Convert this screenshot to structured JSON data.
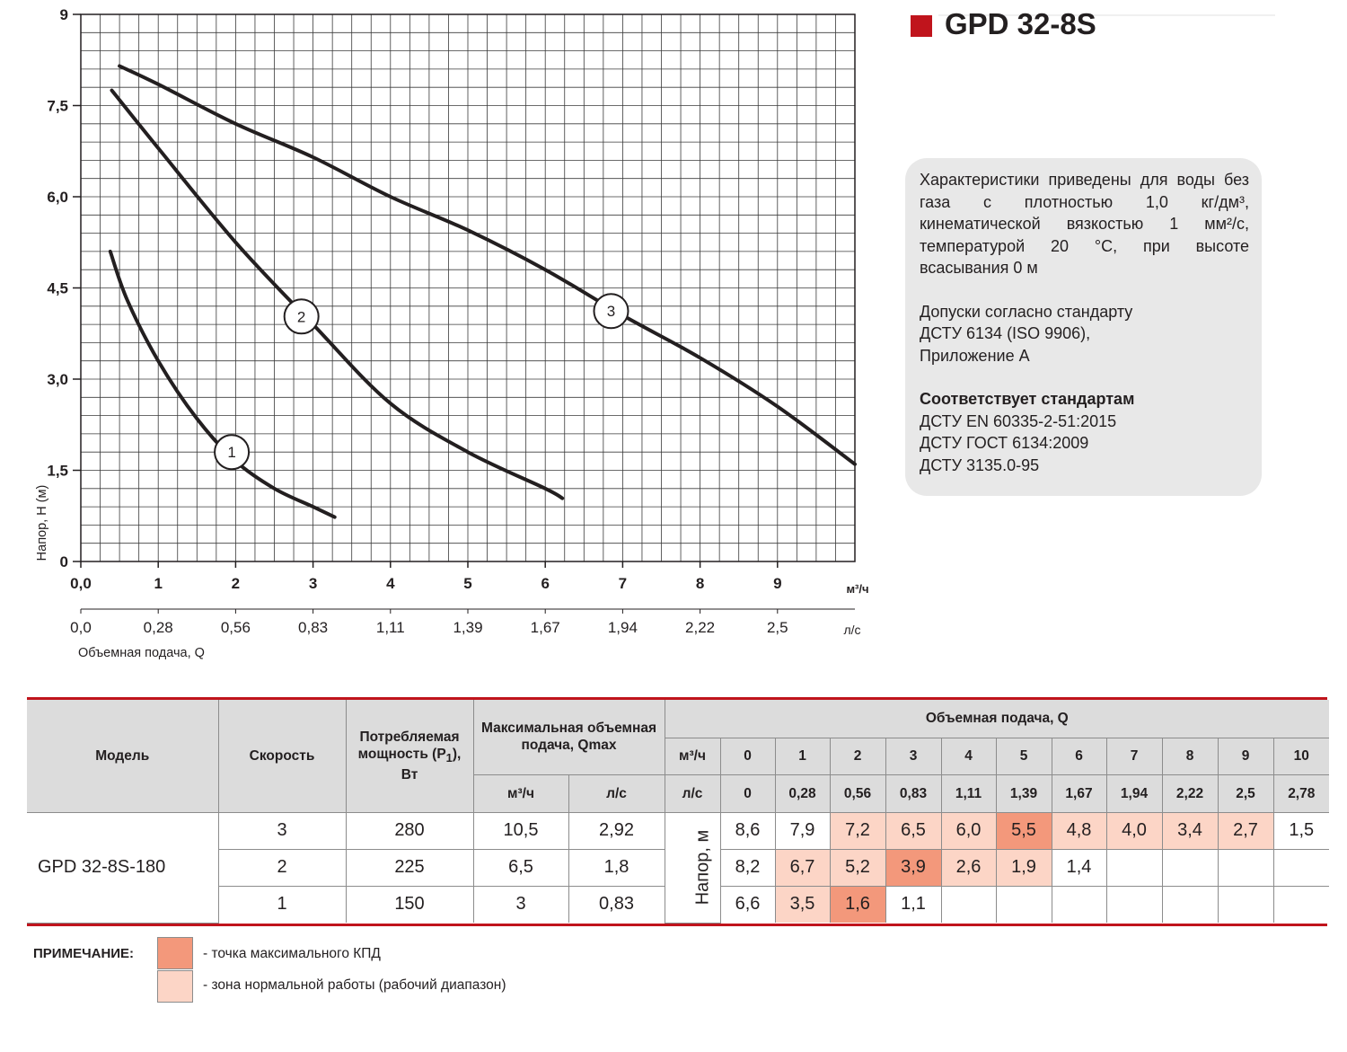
{
  "title": "GPD 32-8S",
  "colors": {
    "accent": "#c0141c",
    "max_efficiency": "#f3987b",
    "normal_zone": "#fcd5c6",
    "info_box": "#e8e8e8",
    "header_bg": "#dcdcdc"
  },
  "chart_data": {
    "type": "line",
    "xlabel": "Объемная подача, Q",
    "ylabel": "Напор, H (м)",
    "x_unit": "м³/ч",
    "x2_unit": "л/с",
    "xlim": [
      0,
      10
    ],
    "ylim": [
      0,
      9
    ],
    "x_ticks": [
      "0,0",
      "1",
      "2",
      "3",
      "4",
      "5",
      "6",
      "7",
      "8",
      "9"
    ],
    "x2_ticks": [
      "0,0",
      "0,28",
      "0,56",
      "0,83",
      "1,11",
      "1,39",
      "1,67",
      "1,94",
      "2,22",
      "2,5"
    ],
    "y_ticks": [
      "0",
      "1,5",
      "3,0",
      "4,5",
      "6,0",
      "7,5",
      "9"
    ],
    "grid": true,
    "series": [
      {
        "name": "1",
        "x": [
          0.38,
          0.6,
          1.0,
          1.5,
          2.0,
          2.5,
          3.0,
          3.28
        ],
        "y": [
          5.1,
          4.3,
          3.3,
          2.35,
          1.65,
          1.2,
          0.9,
          0.73
        ],
        "label_at": [
          1.95,
          1.8
        ]
      },
      {
        "name": "2",
        "x": [
          0.4,
          1.0,
          2.0,
          3.0,
          4.0,
          5.0,
          6.0,
          6.22
        ],
        "y": [
          7.75,
          6.8,
          5.25,
          3.9,
          2.6,
          1.8,
          1.2,
          1.04
        ],
        "label_at": [
          2.85,
          4.03
        ]
      },
      {
        "name": "3",
        "x": [
          0.5,
          1.0,
          2.0,
          3.0,
          4.0,
          5.0,
          6.0,
          7.0,
          8.0,
          9.0,
          10.0
        ],
        "y": [
          8.15,
          7.85,
          7.2,
          6.65,
          6.0,
          5.45,
          4.8,
          4.05,
          3.35,
          2.55,
          1.6
        ],
        "label_at": [
          6.85,
          4.12
        ]
      }
    ]
  },
  "info": {
    "para1": "Характеристики приведены для воды без газа с плотностью 1,0 кг/дм³, кинематической вязкостью 1 мм²/с, температурой 20 °C, при высоте всасывания 0 м",
    "para2": [
      "Допуски согласно стандарту",
      "ДСТУ 6134 (ISO 9906),",
      "Приложение А"
    ],
    "standards_title": "Соответствует стандартам",
    "standards": [
      "ДСТУ EN 60335-2-51:2015",
      "ДСТУ ГОСТ 6134:2009",
      "ДСТУ 3135.0-95"
    ]
  },
  "table": {
    "headers": {
      "model": "Модель",
      "speed": "Скорость",
      "power": "Потребляемая мощность (P1), Вт",
      "qmax": "Максимальная объемная подача, Qmax",
      "flow": "Объемная подача, Q",
      "m3h": "м³/ч",
      "ls": "л/с",
      "head": "Напор, м"
    },
    "flow_m3h": [
      "0",
      "1",
      "2",
      "3",
      "4",
      "5",
      "6",
      "7",
      "8",
      "9",
      "10"
    ],
    "flow_ls": [
      "0",
      "0,28",
      "0,56",
      "0,83",
      "1,11",
      "1,39",
      "1,67",
      "1,94",
      "2,22",
      "2,5",
      "2,78"
    ],
    "model_name": "GPD 32-8S-180",
    "rows": [
      {
        "speed": "3",
        "power": "280",
        "qmax_m3h": "10,5",
        "qmax_ls": "2,92",
        "values": [
          "8,6",
          "7,9",
          "7,2",
          "6,5",
          "6,0",
          "5,5",
          "4,8",
          "4,0",
          "3,4",
          "2,7",
          "1,5"
        ],
        "zones": [
          "",
          "",
          "norm",
          "norm",
          "norm",
          "max",
          "norm",
          "norm",
          "norm",
          "norm",
          ""
        ]
      },
      {
        "speed": "2",
        "power": "225",
        "qmax_m3h": "6,5",
        "qmax_ls": "1,8",
        "values": [
          "8,2",
          "6,7",
          "5,2",
          "3,9",
          "2,6",
          "1,9",
          "1,4",
          "",
          "",
          "",
          ""
        ],
        "zones": [
          "",
          "norm",
          "norm",
          "max",
          "norm",
          "norm",
          "",
          "",
          "",
          "",
          ""
        ]
      },
      {
        "speed": "1",
        "power": "150",
        "qmax_m3h": "3",
        "qmax_ls": "0,83",
        "values": [
          "6,6",
          "3,5",
          "1,6",
          "1,1",
          "",
          "",
          "",
          "",
          "",
          "",
          ""
        ],
        "zones": [
          "",
          "norm",
          "max",
          "",
          "",
          "",
          "",
          "",
          "",
          "",
          ""
        ]
      }
    ]
  },
  "note": {
    "title": "ПРИМЕЧАНИЕ:",
    "max_text": "- точка максимального КПД",
    "norm_text": "- зона нормальной работы (рабочий диапазон)"
  }
}
